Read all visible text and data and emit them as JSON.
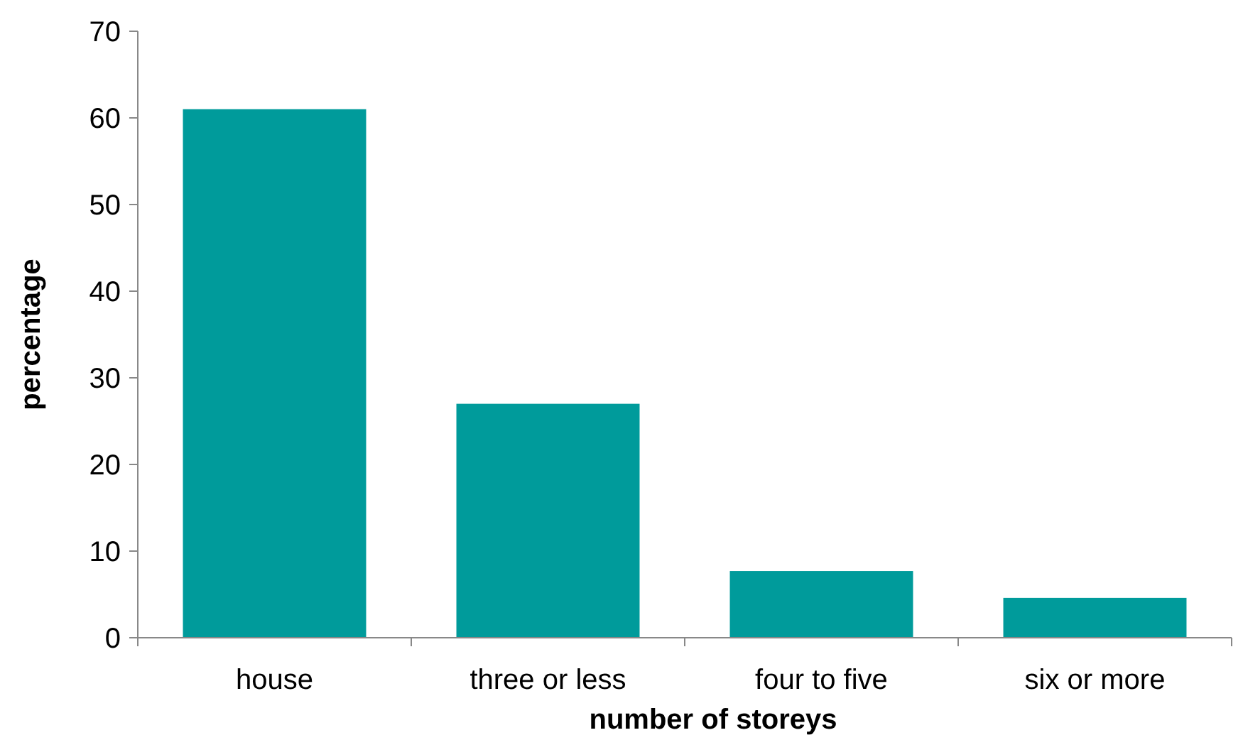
{
  "chart_data": {
    "type": "bar",
    "xlabel": "number of storeys",
    "ylabel": "percentage",
    "categories": [
      "house",
      "three or less",
      "four to five",
      "six or more"
    ],
    "series": [
      {
        "color": "#009b9b",
        "values": [
          61,
          27,
          7.7,
          4.6
        ]
      }
    ],
    "ylim": [
      0,
      70
    ],
    "yticks": [
      0,
      10,
      20,
      30,
      40,
      50,
      60,
      70
    ],
    "grid": false
  }
}
